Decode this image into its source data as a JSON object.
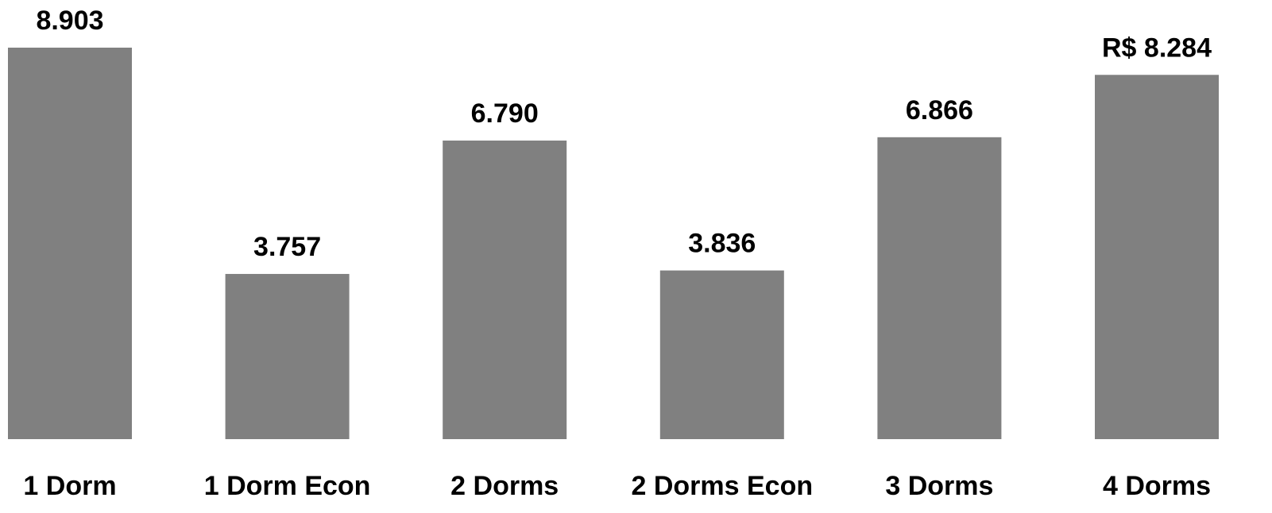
{
  "chart_data": {
    "type": "bar",
    "categories": [
      "1 Dorm",
      "1 Dorm Econ",
      "2 Dorms",
      "2 Dorms Econ",
      "3 Dorms",
      "4 Dorms"
    ],
    "values": [
      8903,
      3757,
      6790,
      3836,
      6866,
      8284
    ],
    "value_labels": [
      "8.903",
      "3.757",
      "6.790",
      "3.836",
      "6.866",
      "R$ 8.284"
    ],
    "color": "#808080"
  }
}
